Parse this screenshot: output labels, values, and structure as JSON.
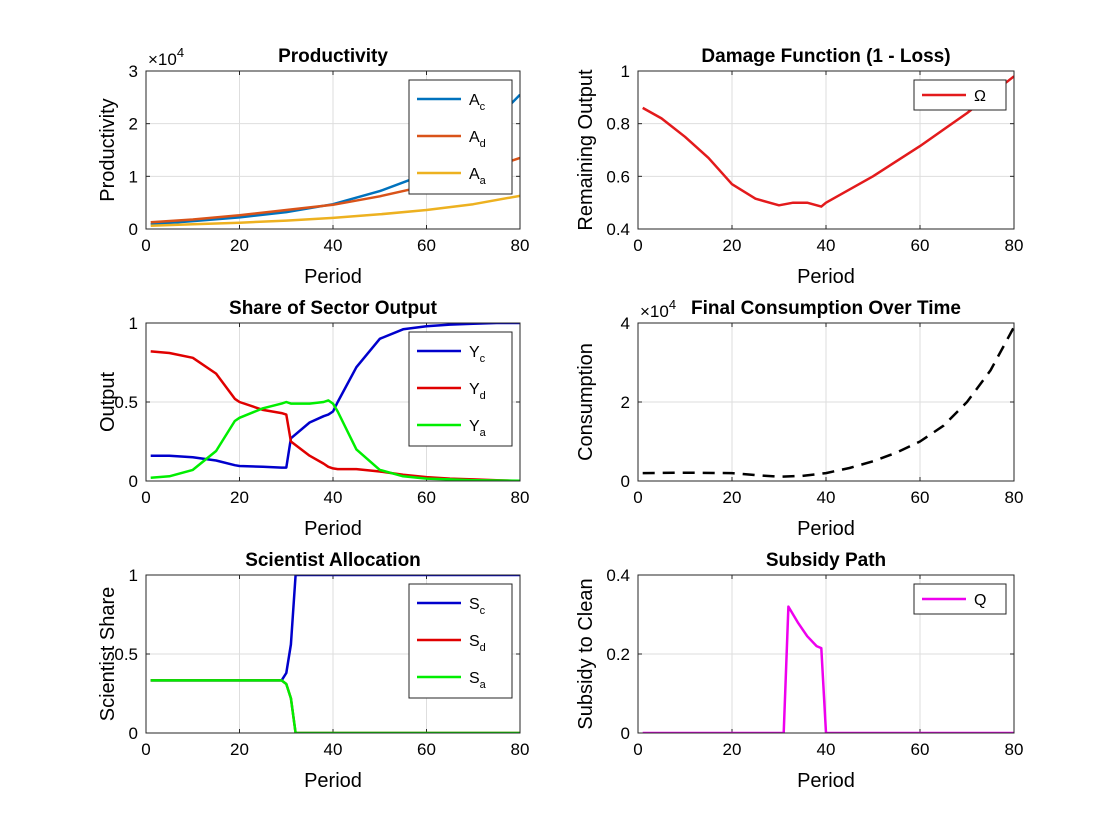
{
  "chart_data": [
    {
      "id": "productivity",
      "type": "line",
      "title": "Productivity",
      "xlabel": "Period",
      "ylabel": "Productivity",
      "xlim": [
        0,
        80
      ],
      "ylim": [
        0,
        3
      ],
      "xticks": [
        "0",
        "20",
        "40",
        "60",
        "80"
      ],
      "yticks": [
        "0",
        "1",
        "2",
        "3"
      ],
      "exponent": {
        "base": "×10",
        "power": "4"
      },
      "grid": true,
      "legend_position": "top-right",
      "x": [
        1,
        10,
        20,
        30,
        40,
        50,
        60,
        70,
        80
      ],
      "series": [
        {
          "name": "A",
          "sub": "c",
          "color": "#0072BD",
          "dash": "solid",
          "values": [
            0.09,
            0.15,
            0.22,
            0.32,
            0.47,
            0.72,
            1.05,
            1.65,
            2.55
          ]
        },
        {
          "name": "A",
          "sub": "d",
          "color": "#D95319",
          "dash": "solid",
          "values": [
            0.13,
            0.18,
            0.26,
            0.36,
            0.46,
            0.62,
            0.82,
            1.05,
            1.35
          ]
        },
        {
          "name": "A",
          "sub": "a",
          "color": "#EDB120",
          "dash": "solid",
          "values": [
            0.06,
            0.09,
            0.12,
            0.16,
            0.21,
            0.28,
            0.36,
            0.47,
            0.63
          ]
        }
      ]
    },
    {
      "id": "damage",
      "type": "line",
      "title": "Damage Function (1 - Loss)",
      "xlabel": "Period",
      "ylabel": "Remaining Output",
      "xlim": [
        0,
        80
      ],
      "ylim": [
        0.4,
        1
      ],
      "xticks": [
        "0",
        "20",
        "40",
        "60",
        "80"
      ],
      "yticks": [
        "0.4",
        "0.6",
        "0.8",
        "1"
      ],
      "grid": true,
      "legend_position": "top-right",
      "x": [
        1,
        5,
        10,
        15,
        20,
        25,
        30,
        33,
        36,
        39,
        40,
        50,
        60,
        70,
        75,
        80
      ],
      "series": [
        {
          "name": "Ω",
          "sub": "",
          "color": "#E31A1C",
          "dash": "solid",
          "values": [
            0.86,
            0.82,
            0.75,
            0.67,
            0.57,
            0.515,
            0.49,
            0.5,
            0.5,
            0.485,
            0.5,
            0.6,
            0.715,
            0.84,
            0.91,
            0.98
          ]
        }
      ]
    },
    {
      "id": "share",
      "type": "line",
      "title": "Share of Sector Output",
      "xlabel": "Period",
      "ylabel": "Output",
      "xlim": [
        0,
        80
      ],
      "ylim": [
        0,
        1
      ],
      "xticks": [
        "0",
        "20",
        "40",
        "60",
        "80"
      ],
      "yticks": [
        "0",
        "0.5",
        "1"
      ],
      "grid": true,
      "legend_position": "top-right",
      "x": [
        1,
        5,
        10,
        15,
        19,
        20,
        25,
        29,
        30,
        31,
        35,
        38,
        39,
        40,
        41,
        45,
        50,
        55,
        60,
        65,
        70,
        75,
        80
      ],
      "series": [
        {
          "name": "Y",
          "sub": "c",
          "color": "#0000CC",
          "dash": "solid",
          "values": [
            0.16,
            0.16,
            0.15,
            0.13,
            0.1,
            0.095,
            0.09,
            0.085,
            0.085,
            0.27,
            0.37,
            0.41,
            0.42,
            0.44,
            0.5,
            0.72,
            0.9,
            0.96,
            0.98,
            0.99,
            0.995,
            1.0,
            1.0
          ]
        },
        {
          "name": "Y",
          "sub": "d",
          "color": "#E00000",
          "dash": "solid",
          "values": [
            0.82,
            0.81,
            0.78,
            0.68,
            0.52,
            0.5,
            0.45,
            0.43,
            0.42,
            0.25,
            0.16,
            0.11,
            0.09,
            0.08,
            0.075,
            0.075,
            0.06,
            0.04,
            0.025,
            0.015,
            0.01,
            0.005,
            0.0
          ]
        },
        {
          "name": "Y",
          "sub": "a",
          "color": "#00EE00",
          "dash": "solid",
          "values": [
            0.02,
            0.03,
            0.07,
            0.19,
            0.38,
            0.4,
            0.46,
            0.49,
            0.5,
            0.49,
            0.49,
            0.5,
            0.51,
            0.49,
            0.44,
            0.2,
            0.07,
            0.03,
            0.015,
            0.01,
            0.005,
            0.003,
            0.002
          ]
        }
      ]
    },
    {
      "id": "consumption",
      "type": "line",
      "title": "Final Consumption Over Time",
      "xlabel": "Period",
      "ylabel": "Consumption",
      "xlim": [
        0,
        80
      ],
      "ylim": [
        0,
        4
      ],
      "xticks": [
        "0",
        "20",
        "40",
        "60",
        "80"
      ],
      "yticks": [
        "0",
        "2",
        "4"
      ],
      "exponent": {
        "base": "×10",
        "power": "4"
      },
      "grid": true,
      "x": [
        1,
        10,
        20,
        25,
        30,
        35,
        40,
        45,
        50,
        55,
        60,
        65,
        70,
        75,
        80
      ],
      "series": [
        {
          "name": "",
          "sub": "",
          "color": "#000000",
          "dash": "dashed",
          "values": [
            0.2,
            0.21,
            0.2,
            0.15,
            0.11,
            0.13,
            0.2,
            0.33,
            0.5,
            0.72,
            1.0,
            1.4,
            2.0,
            2.8,
            3.9
          ]
        }
      ]
    },
    {
      "id": "scientist",
      "type": "line",
      "title": "Scientist Allocation",
      "xlabel": "Period",
      "ylabel": "Scientist Share",
      "xlim": [
        0,
        80
      ],
      "ylim": [
        0,
        1
      ],
      "xticks": [
        "0",
        "20",
        "40",
        "60",
        "80"
      ],
      "yticks": [
        "0",
        "0.5",
        "1"
      ],
      "grid": true,
      "legend_position": "top-right",
      "x": [
        1,
        10,
        20,
        29,
        30,
        31,
        32,
        40,
        50,
        60,
        70,
        80
      ],
      "series": [
        {
          "name": "S",
          "sub": "c",
          "color": "#0000CC",
          "dash": "solid",
          "values": [
            0.333,
            0.333,
            0.333,
            0.333,
            0.38,
            0.56,
            1.0,
            1.0,
            1.0,
            1.0,
            1.0,
            1.0
          ]
        },
        {
          "name": "S",
          "sub": "d",
          "color": "#E00000",
          "dash": "solid",
          "values": [
            0.333,
            0.333,
            0.333,
            0.333,
            0.31,
            0.22,
            0.0,
            0.0,
            0.0,
            0.0,
            0.0,
            0.0
          ]
        },
        {
          "name": "S",
          "sub": "a",
          "color": "#00EE00",
          "dash": "solid",
          "values": [
            0.333,
            0.333,
            0.333,
            0.333,
            0.31,
            0.22,
            0.0,
            0.0,
            0.0,
            0.0,
            0.0,
            0.0
          ]
        }
      ]
    },
    {
      "id": "subsidy",
      "type": "line",
      "title": "Subsidy Path",
      "xlabel": "Period",
      "ylabel": "Subsidy to Clean",
      "xlim": [
        0,
        80
      ],
      "ylim": [
        0,
        0.4
      ],
      "xticks": [
        "0",
        "20",
        "40",
        "60",
        "80"
      ],
      "yticks": [
        "0",
        "0.2",
        "0.4"
      ],
      "grid": true,
      "legend_position": "top-right",
      "x": [
        1,
        10,
        20,
        30,
        31,
        32,
        34,
        36,
        38,
        39,
        40,
        41,
        50,
        60,
        70,
        80
      ],
      "series": [
        {
          "name": "Q",
          "sub": "",
          "color": "#EE00EE",
          "dash": "solid",
          "values": [
            0,
            0,
            0,
            0,
            0,
            0.32,
            0.28,
            0.245,
            0.22,
            0.215,
            0,
            0,
            0,
            0,
            0,
            0
          ]
        }
      ]
    }
  ]
}
